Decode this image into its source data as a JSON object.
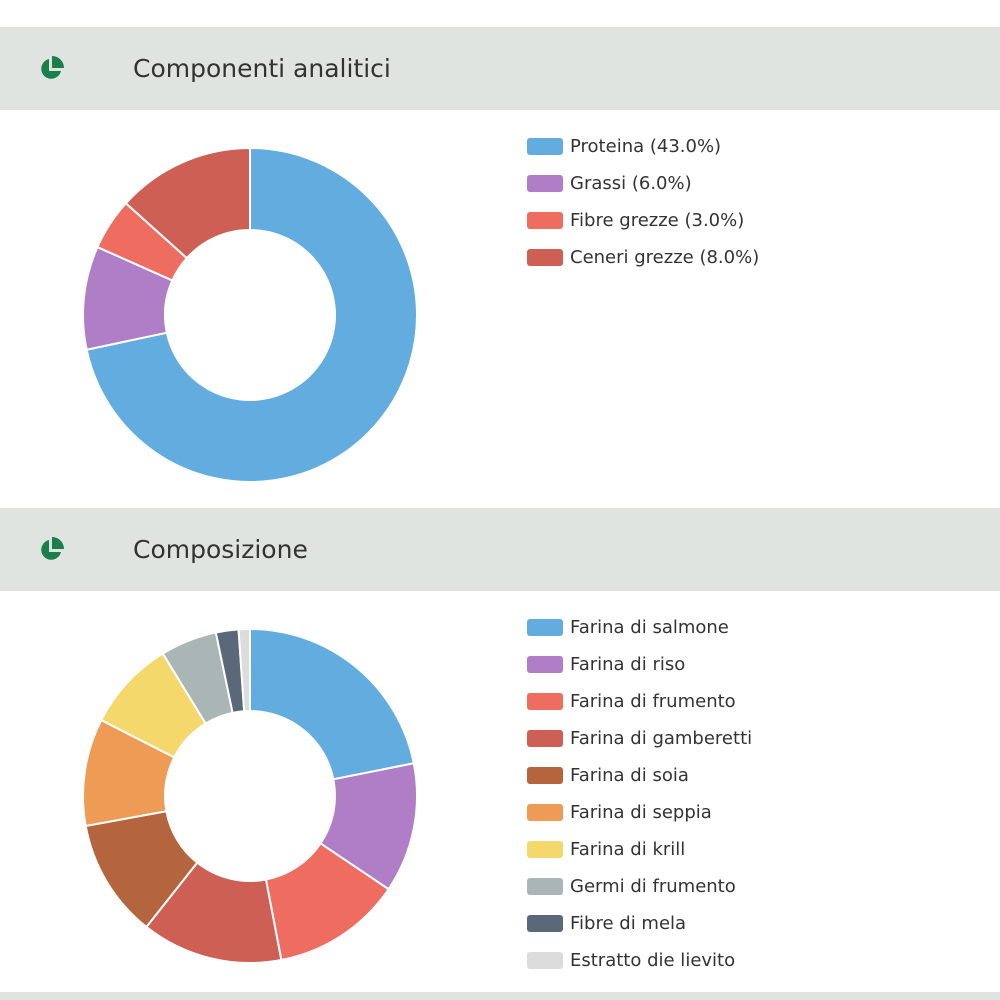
{
  "icon_color": "#1a7f4b",
  "sections": [
    {
      "title": "Componenti analitici",
      "icon": "pie-chart-icon",
      "chart_data": {
        "type": "pie",
        "values": [
          43.0,
          6.0,
          3.0,
          8.0
        ],
        "colors": [
          "#62ace0",
          "#b07ec6",
          "#ee6d60",
          "#ce5f55"
        ],
        "legend": [
          "Proteina (43.0%)",
          "Grassi (6.0%)",
          "Fibre grezze (3.0%)",
          "Ceneri grezze (8.0%)"
        ]
      }
    },
    {
      "title": "Composizione",
      "icon": "pie-chart-icon",
      "chart_data": {
        "type": "pie",
        "values": [
          20,
          11.5,
          11.5,
          12.5,
          10.5,
          9.5,
          8,
          5,
          2,
          1
        ],
        "colors": [
          "#62ace0",
          "#b07ec6",
          "#ee6d60",
          "#ce5f55",
          "#b5653e",
          "#ee9b55",
          "#f4d86b",
          "#a9b6b5",
          "#5b6879",
          "#dcdcdc"
        ],
        "legend": [
          "Farina di salmone",
          "Farina di riso",
          "Farina di frumento",
          "Farina di gamberetti",
          "Farina di soia",
          "Farina di seppia",
          "Farina di krill",
          "Germi di frumento",
          "Fibre di mela",
          "Estratto die lievito"
        ]
      }
    }
  ]
}
